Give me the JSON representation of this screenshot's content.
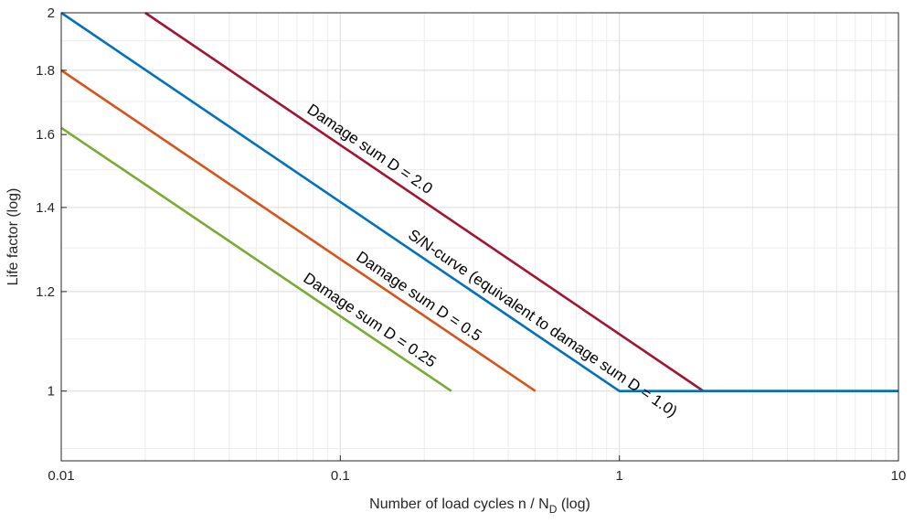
{
  "chart_data": {
    "type": "line",
    "title": "",
    "xlabel_main": "Number of load cycles n / N",
    "xlabel_sub": "D",
    "xlabel_suffix": " (log)",
    "ylabel": "Life factor (log)",
    "xscale": "log",
    "yscale": "log",
    "xlim": [
      0.01,
      10
    ],
    "ylim": [
      0.88,
      2
    ],
    "grid": true,
    "x_ticks": [
      {
        "value": 0.01,
        "label": "0.01"
      },
      {
        "value": 0.1,
        "label": "0.1"
      },
      {
        "value": 1,
        "label": "1"
      },
      {
        "value": 10,
        "label": "10"
      }
    ],
    "y_ticks": [
      {
        "value": 1,
        "label": "1"
      },
      {
        "value": 1.2,
        "label": "1.2"
      },
      {
        "value": 1.4,
        "label": "1.4"
      },
      {
        "value": 1.6,
        "label": "1.6"
      },
      {
        "value": 1.8,
        "label": "1.8"
      },
      {
        "value": 2,
        "label": "2"
      }
    ],
    "series": [
      {
        "name": "damage-2",
        "label": "Damage sum D = 2.0",
        "color": "#a2142f",
        "x": [
          0.02,
          2,
          10
        ],
        "y": [
          2,
          1,
          1
        ],
        "label_at": 0.12
      },
      {
        "name": "sn-curve",
        "label": "S/N-curve (equivalent to damage sum D = 1.0)",
        "color": "#0072bd",
        "x": [
          0.01,
          1,
          10
        ],
        "y": [
          2,
          1,
          1
        ],
        "label_at": 0.5
      },
      {
        "name": "damage-05",
        "label": "Damage sum D = 0.5",
        "color": "#d95319",
        "x": [
          0.01,
          0.5
        ],
        "y": [
          1.8,
          1
        ],
        "label_at": 0.18
      },
      {
        "name": "damage-025",
        "label": "Damage sum D = 0.25",
        "color": "#77ac30",
        "x": [
          0.01,
          0.25
        ],
        "y": [
          1.62,
          1
        ],
        "label_at": 0.12
      }
    ]
  }
}
